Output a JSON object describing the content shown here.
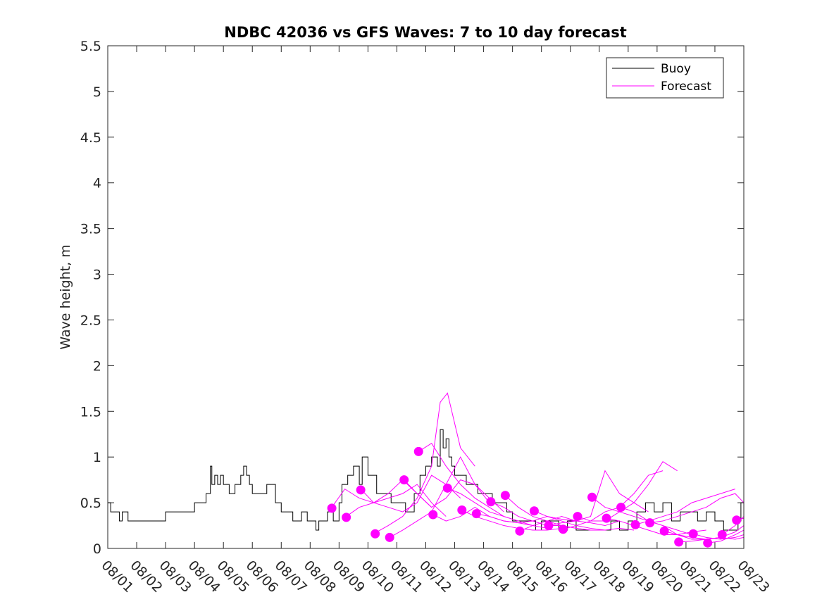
{
  "chart_data": {
    "type": "line",
    "title": "NDBC 42036 vs GFS Waves: 7 to 10 day forecast",
    "xlabel": "",
    "ylabel": "Wave height, m",
    "x_unit": "days since 08/01 00:00",
    "xlim": [
      0,
      22
    ],
    "ylim": [
      0,
      5.5
    ],
    "yticks": [
      0,
      0.5,
      1,
      1.5,
      2,
      2.5,
      3,
      3.5,
      4,
      4.5,
      5,
      5.5
    ],
    "ytick_labels": [
      "0",
      "0.5",
      "1",
      "1.5",
      "2",
      "2.5",
      "3",
      "3.5",
      "4",
      "4.5",
      "5",
      "5.5"
    ],
    "xtick_labels": [
      "08/01",
      "08/02",
      "08/03",
      "08/04",
      "08/05",
      "08/06",
      "08/07",
      "08/08",
      "08/09",
      "08/10",
      "08/11",
      "08/12",
      "08/13",
      "08/14",
      "08/15",
      "08/16",
      "08/17",
      "08/18",
      "08/19",
      "08/20",
      "08/21",
      "08/22",
      "08/23"
    ],
    "legend": {
      "position": "top-right",
      "entries": [
        {
          "label": "Buoy",
          "color": "#000000"
        },
        {
          "label": "Forecast",
          "color": "#ff00ff"
        }
      ]
    },
    "series": [
      {
        "name": "Buoy",
        "color": "#000000",
        "step": true,
        "x": [
          0,
          0.1,
          0.2,
          0.4,
          0.5,
          0.6,
          0.7,
          1.0,
          1.5,
          2.0,
          2.8,
          3.0,
          3.4,
          3.55,
          3.6,
          3.7,
          3.8,
          3.9,
          4.0,
          4.2,
          4.4,
          4.6,
          4.7,
          4.8,
          4.9,
          5.0,
          5.3,
          5.5,
          5.8,
          6.0,
          6.1,
          6.4,
          6.7,
          6.9,
          7.2,
          7.3,
          7.6,
          7.8,
          8.0,
          8.1,
          8.3,
          8.5,
          8.7,
          8.8,
          9.0,
          9.3,
          9.5,
          9.8,
          10.0,
          10.3,
          10.6,
          10.8,
          11.0,
          11.2,
          11.4,
          11.5,
          11.6,
          11.7,
          11.8,
          11.9,
          12.0,
          12.2,
          12.4,
          12.6,
          12.8,
          13.0,
          13.3,
          13.5,
          13.8,
          14.0,
          14.3,
          14.6,
          14.8,
          15.0,
          15.3,
          15.6,
          15.9,
          16.2,
          16.5,
          16.8,
          17.1,
          17.4,
          17.7,
          18.0,
          18.3,
          18.6,
          18.9,
          19.2,
          19.5,
          19.8,
          20.1,
          20.4,
          20.7,
          21.0,
          21.3,
          21.6,
          21.8,
          21.9,
          22.0
        ],
        "values": [
          0.5,
          0.4,
          0.4,
          0.3,
          0.4,
          0.4,
          0.3,
          0.3,
          0.3,
          0.4,
          0.4,
          0.5,
          0.6,
          0.9,
          0.7,
          0.8,
          0.7,
          0.8,
          0.7,
          0.6,
          0.7,
          0.8,
          0.9,
          0.8,
          0.7,
          0.6,
          0.6,
          0.7,
          0.5,
          0.4,
          0.4,
          0.3,
          0.4,
          0.3,
          0.2,
          0.3,
          0.4,
          0.3,
          0.5,
          0.7,
          0.8,
          0.9,
          0.7,
          1.0,
          0.8,
          0.6,
          0.6,
          0.5,
          0.5,
          0.4,
          0.6,
          0.8,
          0.9,
          1.0,
          0.9,
          1.3,
          1.1,
          1.2,
          1.0,
          0.9,
          0.8,
          0.8,
          0.7,
          0.7,
          0.6,
          0.6,
          0.5,
          0.5,
          0.4,
          0.3,
          0.3,
          0.3,
          0.2,
          0.3,
          0.3,
          0.2,
          0.3,
          0.2,
          0.2,
          0.2,
          0.2,
          0.3,
          0.2,
          0.3,
          0.4,
          0.5,
          0.4,
          0.5,
          0.3,
          0.4,
          0.4,
          0.3,
          0.4,
          0.3,
          0.2,
          0.2,
          0.3,
          0.5,
          0.4
        ]
      },
      {
        "name": "Forecast",
        "color": "#ff00ff",
        "runs": [
          {
            "x": [
              7.75,
              8.2,
              8.7,
              9.2,
              9.7,
              10.2,
              10.7,
              11.2
            ],
            "values": [
              0.45,
              0.65,
              0.55,
              0.5,
              0.6,
              0.75,
              0.6,
              0.45
            ]
          },
          {
            "x": [
              8.25,
              8.7,
              9.2,
              9.7,
              10.2,
              10.7,
              11.2,
              11.7
            ],
            "values": [
              0.35,
              0.45,
              0.5,
              0.55,
              0.6,
              0.7,
              0.5,
              0.35
            ]
          },
          {
            "x": [
              8.75,
              9.2,
              9.7,
              10.2,
              10.7,
              11.2,
              11.7,
              12.2
            ],
            "values": [
              0.65,
              0.5,
              0.45,
              0.4,
              0.5,
              0.8,
              0.7,
              0.55
            ]
          },
          {
            "x": [
              9.25,
              9.7,
              10.2,
              10.7,
              11.2,
              11.5,
              11.75,
              12.2,
              12.7
            ],
            "values": [
              0.17,
              0.25,
              0.35,
              0.55,
              0.9,
              1.6,
              1.7,
              1.1,
              0.9
            ]
          },
          {
            "x": [
              9.75,
              10.2,
              10.7,
              11.2,
              11.7,
              12.2,
              12.7,
              13.2
            ],
            "values": [
              0.12,
              0.2,
              0.3,
              0.4,
              0.7,
              1.0,
              0.7,
              0.5
            ]
          },
          {
            "x": [
              10.25,
              10.7,
              11.2,
              11.7,
              12.2,
              12.7,
              13.2,
              13.7
            ],
            "values": [
              0.75,
              0.6,
              0.45,
              0.55,
              0.75,
              0.7,
              0.55,
              0.4
            ]
          },
          {
            "x": [
              10.75,
              11.2,
              11.7,
              12.2,
              12.7,
              13.2,
              13.7,
              14.2
            ],
            "values": [
              1.06,
              1.15,
              0.9,
              0.7,
              0.55,
              0.45,
              0.35,
              0.3
            ]
          },
          {
            "x": [
              11.25,
              11.7,
              12.2,
              12.7,
              13.2,
              13.7,
              14.2,
              14.7
            ],
            "values": [
              0.37,
              0.3,
              0.35,
              0.45,
              0.35,
              0.3,
              0.28,
              0.25
            ]
          },
          {
            "x": [
              11.75,
              12.2,
              12.7,
              13.2,
              13.7,
              14.2,
              14.7,
              15.2
            ],
            "values": [
              0.66,
              0.6,
              0.5,
              0.4,
              0.35,
              0.3,
              0.25,
              0.22
            ]
          },
          {
            "x": [
              12.25,
              12.7,
              13.2,
              13.7,
              14.2,
              14.7,
              15.2,
              15.7
            ],
            "values": [
              0.42,
              0.35,
              0.3,
              0.25,
              0.22,
              0.2,
              0.2,
              0.22
            ]
          },
          {
            "x": [
              12.75,
              13.2,
              13.7,
              14.2,
              14.7,
              15.2,
              15.7,
              16.2
            ],
            "values": [
              0.38,
              0.35,
              0.3,
              0.28,
              0.3,
              0.35,
              0.32,
              0.3
            ]
          },
          {
            "x": [
              13.25,
              13.7,
              14.2,
              14.7,
              15.2,
              15.7,
              16.2,
              16.7
            ],
            "values": [
              0.51,
              0.45,
              0.35,
              0.3,
              0.25,
              0.25,
              0.22,
              0.2
            ]
          },
          {
            "x": [
              13.75,
              14.2,
              14.7,
              15.2,
              15.7,
              16.2,
              16.7,
              17.2
            ],
            "values": [
              0.58,
              0.45,
              0.35,
              0.3,
              0.25,
              0.22,
              0.2,
              0.2
            ]
          },
          {
            "x": [
              14.25,
              14.7,
              15.2,
              15.7,
              16.2,
              16.7,
              17.2,
              17.7
            ],
            "values": [
              0.19,
              0.25,
              0.3,
              0.35,
              0.3,
              0.28,
              0.25,
              0.3
            ]
          },
          {
            "x": [
              14.75,
              15.2,
              15.7,
              16.2,
              16.7,
              17.2,
              17.7,
              18.2
            ],
            "values": [
              0.41,
              0.35,
              0.3,
              0.25,
              0.22,
              0.2,
              0.22,
              0.2
            ]
          },
          {
            "x": [
              15.25,
              15.7,
              16.2,
              16.7,
              17.2,
              17.7,
              18.2,
              18.7
            ],
            "values": [
              0.25,
              0.28,
              0.3,
              0.35,
              0.85,
              0.6,
              0.5,
              0.4
            ]
          },
          {
            "x": [
              15.75,
              16.2,
              16.7,
              17.2,
              17.7,
              18.2,
              18.7,
              19.2
            ],
            "values": [
              0.21,
              0.25,
              0.3,
              0.4,
              0.45,
              0.6,
              0.8,
              0.85
            ]
          },
          {
            "x": [
              16.25,
              16.7,
              17.2,
              17.7,
              18.2,
              18.7,
              19.2,
              19.7
            ],
            "values": [
              0.35,
              0.3,
              0.3,
              0.4,
              0.5,
              0.7,
              0.95,
              0.85
            ]
          },
          {
            "x": [
              16.75,
              17.2,
              17.7,
              18.2,
              18.7,
              19.2,
              19.7,
              20.2
            ],
            "values": [
              0.56,
              0.45,
              0.4,
              0.35,
              0.3,
              0.25,
              0.2,
              0.15
            ]
          },
          {
            "x": [
              17.25,
              17.7,
              18.2,
              18.7,
              19.2,
              19.7,
              20.2,
              20.7
            ],
            "values": [
              0.33,
              0.3,
              0.25,
              0.2,
              0.15,
              0.15,
              0.18,
              0.2
            ]
          },
          {
            "x": [
              17.75,
              18.2,
              18.7,
              19.2,
              19.7,
              20.2,
              20.7,
              21.2
            ],
            "values": [
              0.45,
              0.4,
              0.3,
              0.25,
              0.15,
              0.1,
              0.1,
              0.12
            ]
          },
          {
            "x": [
              18.25,
              18.7,
              19.2,
              19.7,
              20.2,
              20.7,
              21.2,
              21.7
            ],
            "values": [
              0.26,
              0.3,
              0.35,
              0.4,
              0.5,
              0.55,
              0.6,
              0.65
            ]
          },
          {
            "x": [
              18.75,
              19.2,
              19.7,
              20.2,
              20.7,
              21.2,
              21.7,
              22.0
            ],
            "values": [
              0.28,
              0.3,
              0.35,
              0.4,
              0.45,
              0.55,
              0.6,
              0.5
            ]
          },
          {
            "x": [
              19.25,
              19.7,
              20.2,
              20.7,
              21.2,
              21.7,
              22.0
            ],
            "values": [
              0.19,
              0.15,
              0.12,
              0.1,
              0.12,
              0.18,
              0.25
            ]
          },
          {
            "x": [
              19.75,
              20.2,
              20.7,
              21.2,
              21.7,
              22.0
            ],
            "values": [
              0.07,
              0.08,
              0.1,
              0.12,
              0.1,
              0.12
            ]
          },
          {
            "x": [
              20.25,
              20.7,
              21.2,
              21.7,
              22.0
            ],
            "values": [
              0.16,
              0.12,
              0.1,
              0.12,
              0.15
            ]
          },
          {
            "x": [
              20.75,
              21.2,
              21.7,
              22.0
            ],
            "values": [
              0.06,
              0.08,
              0.15,
              0.2
            ]
          },
          {
            "x": [
              21.25,
              21.7,
              22.0
            ],
            "values": [
              0.15,
              0.25,
              0.35
            ]
          },
          {
            "x": [
              21.75,
              22.0
            ],
            "values": [
              0.31,
              0.33
            ]
          }
        ],
        "markers": {
          "x": [
            7.75,
            8.25,
            8.75,
            9.25,
            9.75,
            10.25,
            10.75,
            11.25,
            11.75,
            12.25,
            12.75,
            13.25,
            13.75,
            14.25,
            14.75,
            15.25,
            15.75,
            16.25,
            16.75,
            17.25,
            17.75,
            18.25,
            18.75,
            19.25,
            19.75,
            20.25,
            20.75,
            21.25,
            21.75
          ],
          "values": [
            0.44,
            0.34,
            0.64,
            0.16,
            0.12,
            0.75,
            1.06,
            0.37,
            0.66,
            0.42,
            0.38,
            0.51,
            0.58,
            0.19,
            0.41,
            0.25,
            0.21,
            0.35,
            0.56,
            0.33,
            0.45,
            0.26,
            0.28,
            0.19,
            0.07,
            0.16,
            0.06,
            0.15,
            0.31
          ]
        }
      }
    ]
  }
}
